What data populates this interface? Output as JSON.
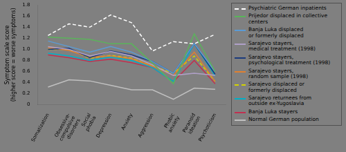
{
  "chart_data": {
    "type": "line",
    "categories": [
      "Somatization",
      "Obsessive-\ncompulsive\ndisorders",
      "Social\nphobia",
      "Depression",
      "Anxiety",
      "Aggression",
      "Phobic\nanxiety",
      "Paranoid\nideation",
      "Psychoticism"
    ],
    "series": [
      {
        "name": "Psychiatric German inpatients",
        "color": "#ffffff",
        "line_style": "dashed",
        "values": [
          1.25,
          1.46,
          1.4,
          1.62,
          1.48,
          0.97,
          1.14,
          1.1,
          1.27
        ]
      },
      {
        "name": "Prijedor displaced in collective centers",
        "color": "#5ab45a",
        "line_style": "solid",
        "values": [
          1.22,
          1.2,
          1.18,
          1.1,
          1.1,
          0.75,
          0.38,
          1.28,
          0.6
        ]
      },
      {
        "name": "Banja Luka displaced\nor formerly displaced",
        "color": "#5b9bd5",
        "line_style": "solid",
        "values": [
          1.15,
          1.05,
          0.95,
          1.05,
          0.95,
          0.78,
          0.57,
          1.1,
          0.6
        ]
      },
      {
        "name": "Sarajevo stayers,\nmedical treatment (1998)",
        "color": "#b0a0c8",
        "line_style": "solid",
        "values": [
          1.05,
          1.0,
          0.88,
          0.96,
          0.88,
          0.72,
          0.53,
          0.57,
          0.53
        ]
      },
      {
        "name": "Sarajevo stayers,\npsychological treatment (1998)",
        "color": "#1a3a7c",
        "line_style": "solid",
        "values": [
          1.0,
          1.02,
          0.85,
          0.97,
          0.9,
          0.78,
          0.57,
          1.1,
          0.55
        ]
      },
      {
        "name": "Sarajevo stayers,\nrandom sample (1998)",
        "color": "#e08030",
        "line_style": "solid",
        "values": [
          1.03,
          0.98,
          0.86,
          0.88,
          0.83,
          0.7,
          0.53,
          0.95,
          0.42
        ]
      },
      {
        "name": "Sarajevo displaced or\nformerly displaced",
        "color": "#d4d400",
        "line_style": "dashed",
        "values": [
          1.0,
          1.0,
          0.84,
          0.89,
          0.84,
          0.7,
          0.57,
          0.88,
          0.42
        ]
      },
      {
        "name": "Sarajevo returnees from\noutside ex-Yugoslavia",
        "color": "#00b0c8",
        "line_style": "solid",
        "values": [
          0.93,
          0.88,
          0.8,
          0.86,
          0.8,
          0.67,
          0.42,
          1.1,
          0.52
        ]
      },
      {
        "name": "Banja Luka stayers",
        "color": "#c03050",
        "line_style": "solid",
        "values": [
          0.9,
          0.85,
          0.78,
          0.82,
          0.76,
          0.67,
          0.42,
          0.8,
          0.38
        ]
      },
      {
        "name": "Normal German population",
        "color": "#c0c0c0",
        "line_style": "solid",
        "values": [
          0.32,
          0.45,
          0.43,
          0.35,
          0.27,
          0.27,
          0.1,
          0.3,
          0.28
        ]
      }
    ],
    "ylabel": "Symptom scale score\n(higher score = worse symptoms)",
    "ylim": [
      0,
      1.8
    ],
    "yticks": [
      0,
      0.2,
      0.4,
      0.6,
      0.8,
      {
        "value": 1.0,
        "label": "1.0"
      },
      1.2,
      1.4,
      1.6,
      1.8
    ],
    "grid": false,
    "legend": "upper right"
  }
}
